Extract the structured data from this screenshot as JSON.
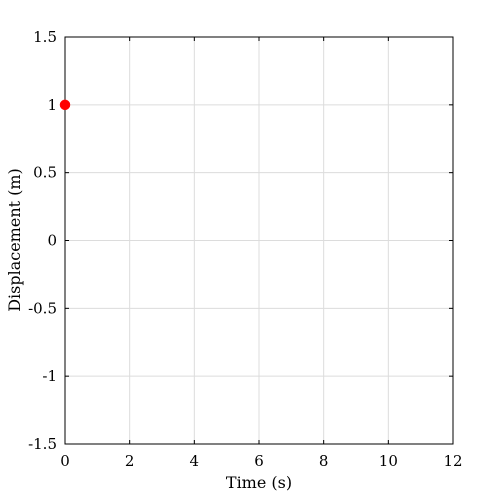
{
  "chart_data": {
    "type": "scatter",
    "xlabel": "Time (s)",
    "ylabel": "Displacement (m)",
    "xlim": [
      0,
      12
    ],
    "ylim": [
      -1.5,
      1.5
    ],
    "xticks": [
      0,
      2,
      4,
      6,
      8,
      10,
      12
    ],
    "xtick_labels": [
      "0",
      "2",
      "4",
      "6",
      "8",
      "10",
      "12"
    ],
    "yticks": [
      -1.5,
      -1,
      -0.5,
      0,
      0.5,
      1,
      1.5
    ],
    "ytick_labels": [
      "-1.5",
      "-1",
      "-0.5",
      "0",
      "0.5",
      "1",
      "1.5"
    ],
    "grid": true,
    "box": true,
    "series": [
      {
        "color": "#ff0000",
        "marker": "circle",
        "points": [
          {
            "x": 0,
            "y": 1
          }
        ]
      }
    ]
  }
}
